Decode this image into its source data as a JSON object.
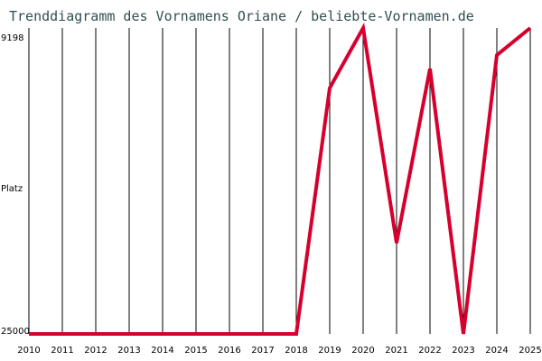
{
  "chart_data": {
    "type": "line",
    "title": "Trenddiagramm des Vornamens Oriane / beliebte-Vornamen.de",
    "ylabel": "Platz",
    "x": [
      "2010",
      "2011",
      "2012",
      "2013",
      "2014",
      "2015",
      "2016",
      "2017",
      "2018",
      "2019",
      "2020",
      "2021",
      "2022",
      "2023",
      "2024",
      "2025"
    ],
    "y_tick_labels": [
      "9198",
      "25000"
    ],
    "ylim": [
      25000,
      9198
    ],
    "y_inverted": true,
    "grid": "vertical",
    "series": [
      {
        "values": [
          25000,
          25000,
          25000,
          25000,
          25000,
          25000,
          25000,
          25000,
          25000,
          12300,
          9198,
          20300,
          11300,
          25000,
          10600,
          9198
        ]
      }
    ],
    "colors": {
      "line": "#d6002f",
      "title": "#2f4f4f",
      "grid": "#000000"
    }
  }
}
